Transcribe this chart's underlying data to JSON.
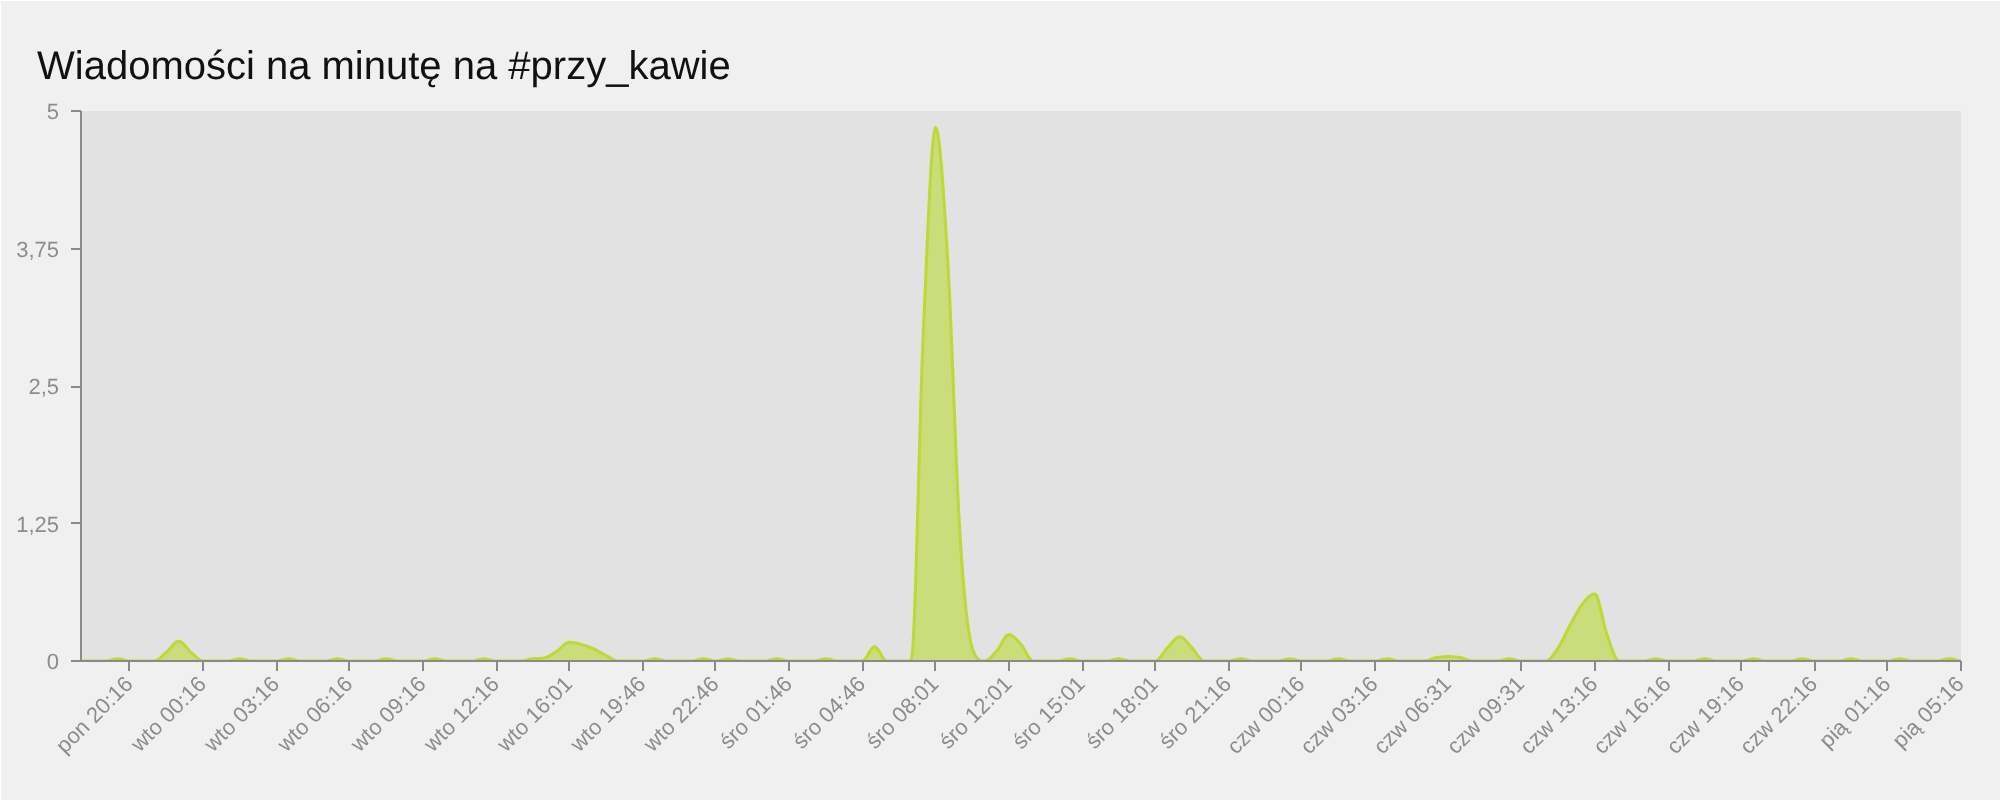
{
  "chart_data": {
    "type": "area",
    "title": "Wiadomości na minutę na #przy_kawie",
    "categories": [
      null,
      null,
      null,
      null,
      "pon 20:16",
      null,
      null,
      null,
      null,
      null,
      "wto 00:16",
      null,
      null,
      null,
      null,
      null,
      "wto 03:16",
      null,
      null,
      null,
      null,
      null,
      "wto 06:16",
      null,
      null,
      null,
      null,
      null,
      "wto 09:16",
      null,
      null,
      null,
      null,
      null,
      "wto 12:16",
      null,
      null,
      null,
      null,
      null,
      "wto 16:01",
      null,
      null,
      null,
      null,
      null,
      "wto 19:46",
      null,
      null,
      null,
      null,
      null,
      "wto 22:46",
      null,
      null,
      null,
      null,
      null,
      "śro 01:46",
      null,
      null,
      null,
      null,
      null,
      "śro 04:46",
      null,
      null,
      null,
      null,
      null,
      "śro 08:01",
      null,
      null,
      null,
      null,
      null,
      "śro 12:01",
      null,
      null,
      null,
      null,
      null,
      "śro 15:01",
      null,
      null,
      null,
      null,
      null,
      "śro 18:01",
      null,
      null,
      null,
      null,
      null,
      "śro 21:16",
      null,
      null,
      null,
      null,
      null,
      "czw 00:16",
      null,
      null,
      null,
      null,
      null,
      "czw 03:16",
      null,
      null,
      null,
      null,
      null,
      "czw 06:31",
      null,
      null,
      null,
      null,
      null,
      "czw 09:31",
      null,
      null,
      null,
      null,
      null,
      "czw 13:16",
      null,
      null,
      null,
      null,
      null,
      "czw 16:16",
      null,
      null,
      null,
      null,
      null,
      "czw 19:16",
      null,
      null,
      null,
      null,
      null,
      "czw 22:16",
      null,
      null,
      null,
      null,
      null,
      "pią 01:16",
      null,
      null,
      null,
      null,
      null,
      "pią 05:16"
    ],
    "values": [
      0,
      0,
      0,
      0.02,
      0,
      0,
      0,
      0.08,
      0.18,
      0.08,
      0,
      0,
      0,
      0.02,
      0,
      0,
      0,
      0.02,
      0,
      0,
      0,
      0.02,
      0,
      0,
      0,
      0.02,
      0,
      0,
      0,
      0.02,
      0,
      0,
      0,
      0.02,
      0,
      0,
      0,
      0.02,
      0.03,
      0.09,
      0.17,
      0.15,
      0.11,
      0.05,
      0,
      0,
      0,
      0.02,
      0,
      0,
      0,
      0.02,
      0,
      0.02,
      0,
      0,
      0,
      0.02,
      0,
      0,
      0,
      0.02,
      0,
      0,
      0,
      0.13,
      0,
      0,
      0,
      3.0,
      4.85,
      3.64,
      1.15,
      0.12,
      0,
      0.09,
      0.24,
      0.15,
      0,
      0,
      0,
      0.02,
      0,
      0,
      0,
      0.02,
      0,
      0,
      0,
      0.12,
      0.22,
      0.12,
      0,
      0,
      0,
      0.02,
      0,
      0,
      0,
      0.02,
      0,
      0,
      0,
      0.02,
      0,
      0,
      0,
      0.02,
      0,
      0,
      0,
      0.03,
      0.04,
      0.03,
      0,
      0,
      0,
      0.02,
      0,
      0,
      0,
      0.12,
      0.33,
      0.52,
      0.61,
      0.24,
      0,
      0,
      0,
      0.02,
      0,
      0,
      0,
      0.02,
      0,
      0,
      0,
      0.02,
      0,
      0,
      0,
      0.02,
      0,
      0,
      0,
      0.02,
      0,
      0,
      0,
      0.02,
      0,
      0,
      0,
      0.02,
      0
    ],
    "color": "#bcd935",
    "ylim": [
      0,
      5
    ],
    "yticks": [
      0,
      {
        "value": 1.25,
        "label": "1,25"
      },
      {
        "value": 2.5,
        "label": "2,5"
      },
      {
        "value": 3.75,
        "label": "3,75"
      },
      5
    ]
  }
}
